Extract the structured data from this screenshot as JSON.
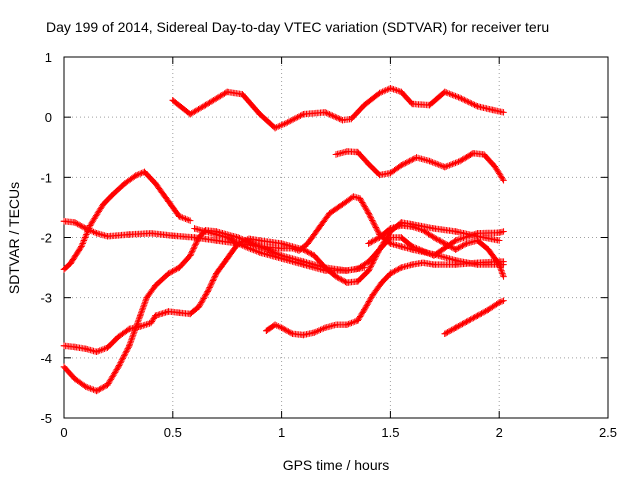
{
  "chart_data": {
    "type": "scatter",
    "title": "Day 199 of 2014, Sidereal Day-to-day VTEC variation (SDTVAR) for receiver teru",
    "xlabel": "GPS time / hours",
    "ylabel": "SDTVAR / TECUs",
    "xlim": [
      0,
      2.5
    ],
    "ylim": [
      -5,
      1
    ],
    "xticks": [
      0,
      0.5,
      1,
      1.5,
      2,
      2.5
    ],
    "xtick_labels": [
      "0",
      "0.5",
      "1",
      "1.5",
      "2",
      "2.5"
    ],
    "yticks": [
      -5,
      -4,
      -3,
      -2,
      -1,
      0,
      1
    ],
    "ytick_labels": [
      "-5",
      "-4",
      "-3",
      "-2",
      "-1",
      "0",
      "1"
    ],
    "grid": true,
    "marker": "+",
    "color": "#ff0000",
    "series": [
      {
        "name": "s1",
        "x": [
          0.5,
          0.58,
          0.65,
          0.75,
          0.82,
          0.9,
          0.97,
          1.02,
          1.1,
          1.2,
          1.28,
          1.32,
          1.38,
          1.45,
          1.5,
          1.55,
          1.6,
          1.68,
          1.75,
          1.82,
          1.9,
          1.97,
          2.02
        ],
        "y": [
          0.28,
          0.05,
          0.2,
          0.42,
          0.38,
          0.05,
          -0.18,
          -0.1,
          0.05,
          0.08,
          -0.05,
          -0.03,
          0.2,
          0.4,
          0.48,
          0.42,
          0.22,
          0.2,
          0.42,
          0.32,
          0.18,
          0.12,
          0.08
        ]
      },
      {
        "name": "s2",
        "x": [
          1.25,
          1.3,
          1.35,
          1.4,
          1.45,
          1.5,
          1.55,
          1.62,
          1.68,
          1.75,
          1.82,
          1.88,
          1.93,
          1.98,
          2.02
        ],
        "y": [
          -0.62,
          -0.57,
          -0.58,
          -0.78,
          -0.96,
          -0.93,
          -0.8,
          -0.67,
          -0.73,
          -0.83,
          -0.73,
          -0.6,
          -0.62,
          -0.82,
          -1.05
        ]
      },
      {
        "name": "s3",
        "x": [
          0.0,
          0.03,
          0.08,
          0.12,
          0.18,
          0.22,
          0.28,
          0.33,
          0.37,
          0.42,
          0.48,
          0.53,
          0.58
        ],
        "y": [
          -2.53,
          -2.43,
          -2.15,
          -1.8,
          -1.45,
          -1.3,
          -1.1,
          -0.97,
          -0.91,
          -1.1,
          -1.4,
          -1.65,
          -1.72
        ]
      },
      {
        "name": "s4",
        "x": [
          0.0,
          0.05,
          0.1,
          0.15,
          0.2,
          0.3,
          0.4,
          0.5,
          0.6,
          0.7,
          0.8,
          0.9,
          1.0,
          1.05,
          1.08,
          1.12,
          1.18,
          1.22,
          1.28,
          1.33,
          1.36,
          1.4,
          1.45,
          1.5,
          1.55,
          1.6,
          1.7,
          1.8,
          1.9,
          2.0,
          2.02
        ],
        "y": [
          -1.73,
          -1.75,
          -1.85,
          -1.93,
          -1.98,
          -1.95,
          -1.93,
          -1.97,
          -2.0,
          -2.05,
          -2.1,
          -2.15,
          -2.18,
          -2.18,
          -2.22,
          -2.1,
          -1.8,
          -1.6,
          -1.45,
          -1.32,
          -1.35,
          -1.6,
          -1.95,
          -2.1,
          -2.15,
          -2.2,
          -2.28,
          -2.38,
          -2.45,
          -2.45,
          -2.45
        ]
      },
      {
        "name": "s5",
        "x": [
          0.0,
          0.05,
          0.1,
          0.15,
          0.2,
          0.25,
          0.3,
          0.35,
          0.4,
          0.42,
          0.48,
          0.53,
          0.58,
          0.62,
          0.66,
          0.7,
          0.75,
          0.8,
          0.85,
          0.9,
          1.0,
          1.1,
          1.15,
          1.2,
          1.25,
          1.3,
          1.35,
          1.4,
          1.45,
          1.5,
          1.55,
          1.6,
          1.7,
          1.8,
          1.9,
          2.0,
          2.02
        ],
        "y": [
          -3.8,
          -3.82,
          -3.85,
          -3.9,
          -3.83,
          -3.65,
          -3.52,
          -3.48,
          -3.42,
          -3.3,
          -3.23,
          -3.25,
          -3.27,
          -3.15,
          -2.9,
          -2.6,
          -2.35,
          -2.1,
          -2.02,
          -2.05,
          -2.1,
          -2.2,
          -2.3,
          -2.5,
          -2.65,
          -2.75,
          -2.73,
          -2.55,
          -2.2,
          -2.0,
          -2.0,
          -2.15,
          -2.3,
          -2.05,
          -1.93,
          -1.92,
          -1.9
        ]
      },
      {
        "name": "s6",
        "x": [
          0.0,
          0.05,
          0.1,
          0.15,
          0.2,
          0.25,
          0.3,
          0.35,
          0.38,
          0.42,
          0.48,
          0.53,
          0.58,
          0.62,
          0.65,
          0.7,
          0.8,
          0.9,
          1.0,
          1.1,
          1.2,
          1.3,
          1.35,
          1.4,
          1.45,
          1.5,
          1.55,
          1.6,
          1.7,
          1.8,
          1.9,
          2.0
        ],
        "y": [
          -4.15,
          -4.35,
          -4.48,
          -4.55,
          -4.45,
          -4.15,
          -3.8,
          -3.3,
          -3.0,
          -2.8,
          -2.6,
          -2.5,
          -2.3,
          -2.0,
          -1.88,
          -1.9,
          -2.0,
          -2.15,
          -2.3,
          -2.4,
          -2.5,
          -2.55,
          -2.52,
          -2.4,
          -2.2,
          -1.9,
          -1.75,
          -1.78,
          -1.85,
          -1.9,
          -1.98,
          -2.05
        ]
      },
      {
        "name": "s7",
        "x": [
          0.6,
          0.65,
          0.7,
          0.75,
          0.8,
          0.85,
          0.9,
          1.0,
          1.1,
          1.2,
          1.25,
          1.3,
          1.35,
          1.38
        ],
        "y": [
          -1.85,
          -1.9,
          -1.95,
          -2.0,
          -2.1,
          -2.18,
          -2.25,
          -2.35,
          -2.45,
          -2.55,
          -2.55,
          -2.55,
          -2.52,
          -2.5
        ]
      },
      {
        "name": "s8",
        "x": [
          0.93,
          0.97,
          1.0,
          1.05,
          1.1,
          1.15,
          1.2,
          1.25,
          1.3,
          1.35,
          1.38,
          1.42,
          1.46,
          1.5,
          1.55,
          1.6,
          1.65,
          1.7,
          1.8,
          1.9,
          2.0,
          2.02
        ],
        "y": [
          -3.55,
          -3.45,
          -3.5,
          -3.6,
          -3.62,
          -3.58,
          -3.5,
          -3.45,
          -3.45,
          -3.38,
          -3.2,
          -2.95,
          -2.75,
          -2.6,
          -2.5,
          -2.45,
          -2.42,
          -2.45,
          -2.45,
          -2.42,
          -2.4,
          -2.4
        ]
      },
      {
        "name": "s9",
        "x": [
          1.4,
          1.45,
          1.5,
          1.55,
          1.6,
          1.65,
          1.7,
          1.75,
          1.8,
          1.85,
          1.9,
          1.95,
          2.0,
          2.02
        ],
        "y": [
          -2.1,
          -2.0,
          -1.85,
          -1.8,
          -1.82,
          -1.88,
          -2.0,
          -2.1,
          -2.2,
          -2.1,
          -2.05,
          -2.2,
          -2.45,
          -2.65
        ]
      },
      {
        "name": "s10",
        "x": [
          1.75,
          1.8,
          1.85,
          1.9,
          1.95,
          2.0,
          2.02
        ],
        "y": [
          -3.6,
          -3.5,
          -3.4,
          -3.3,
          -3.2,
          -3.08,
          -3.05
        ]
      }
    ]
  }
}
